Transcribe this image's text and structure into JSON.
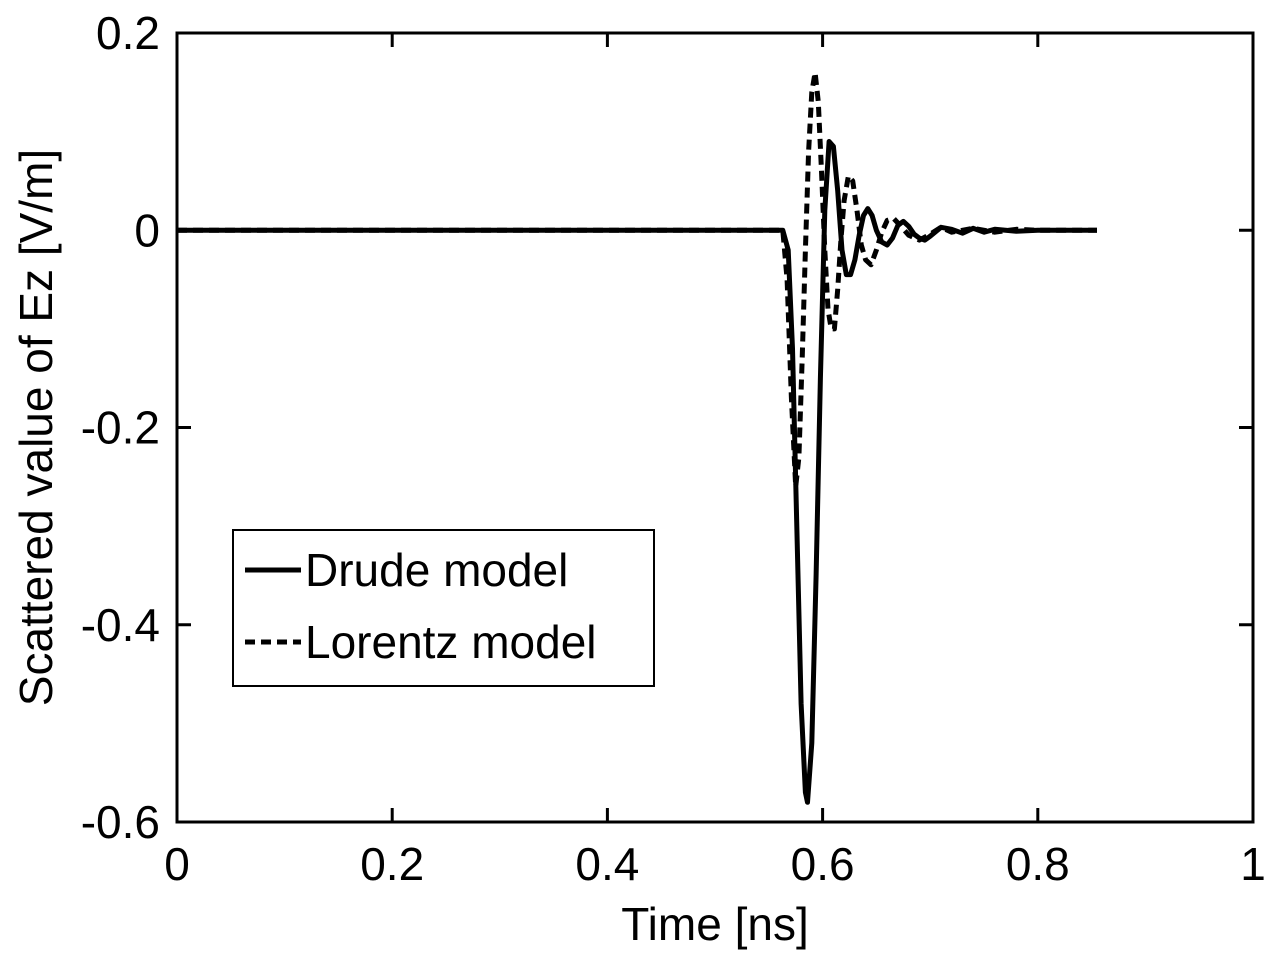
{
  "chart_data": {
    "type": "line",
    "title": "",
    "xlabel": "Time [ns]",
    "ylabel": "Scattered value of Ez [V/m]",
    "xlim": [
      0,
      1
    ],
    "ylim": [
      -0.6,
      0.2
    ],
    "xticks": [
      0,
      0.2,
      0.4,
      0.6,
      0.8,
      1
    ],
    "xtick_labels": [
      "0",
      "0.2",
      "0.4",
      "0.6",
      "0.8",
      "1"
    ],
    "yticks": [
      -0.6,
      -0.4,
      -0.2,
      0,
      0.2
    ],
    "ytick_labels": [
      "-0.6",
      "-0.4",
      "-0.2",
      "0",
      "0.2"
    ],
    "grid": false,
    "legend_position": "lower-left",
    "series": [
      {
        "name": "Drude model",
        "style": "solid",
        "color": "#000000",
        "x": [
          0,
          0.563,
          0.568,
          0.572,
          0.576,
          0.58,
          0.584,
          0.586,
          0.59,
          0.594,
          0.598,
          0.602,
          0.606,
          0.61,
          0.614,
          0.618,
          0.622,
          0.626,
          0.63,
          0.634,
          0.638,
          0.642,
          0.646,
          0.65,
          0.655,
          0.66,
          0.665,
          0.67,
          0.675,
          0.68,
          0.685,
          0.69,
          0.695,
          0.7,
          0.71,
          0.72,
          0.73,
          0.74,
          0.75,
          0.76,
          0.78,
          0.8,
          0.82,
          0.855
        ],
        "y": [
          0,
          0,
          -0.02,
          -0.12,
          -0.3,
          -0.48,
          -0.57,
          -0.58,
          -0.52,
          -0.35,
          -0.15,
          0.02,
          0.09,
          0.085,
          0.04,
          -0.02,
          -0.045,
          -0.045,
          -0.03,
          -0.005,
          0.015,
          0.022,
          0.015,
          0.0,
          -0.012,
          -0.015,
          -0.008,
          0.005,
          0.009,
          0.004,
          -0.004,
          -0.008,
          -0.01,
          -0.006,
          0.003,
          0.001,
          -0.003,
          0.002,
          -0.002,
          0.001,
          -0.001,
          0.0,
          0.0,
          0.0
        ]
      },
      {
        "name": "Lorentz model",
        "style": "dashed",
        "color": "#000000",
        "x": [
          0,
          0.563,
          0.567,
          0.571,
          0.575,
          0.578,
          0.581,
          0.584,
          0.587,
          0.59,
          0.593,
          0.596,
          0.599,
          0.602,
          0.605,
          0.608,
          0.611,
          0.614,
          0.617,
          0.62,
          0.624,
          0.628,
          0.632,
          0.636,
          0.64,
          0.645,
          0.65,
          0.655,
          0.66,
          0.666,
          0.672,
          0.68,
          0.69,
          0.7,
          0.71,
          0.72,
          0.74,
          0.76,
          0.78,
          0.8,
          0.82,
          0.855
        ],
        "y": [
          0,
          0,
          -0.05,
          -0.17,
          -0.26,
          -0.23,
          -0.13,
          -0.02,
          0.08,
          0.14,
          0.16,
          0.13,
          0.06,
          -0.02,
          -0.08,
          -0.1,
          -0.1,
          -0.06,
          -0.01,
          0.03,
          0.055,
          0.05,
          0.02,
          -0.015,
          -0.03,
          -0.035,
          -0.02,
          -0.002,
          0.01,
          0.012,
          0.005,
          -0.005,
          -0.01,
          -0.004,
          0.003,
          -0.002,
          0.002,
          -0.002,
          0.001,
          0.0,
          0.0,
          0.0
        ]
      }
    ]
  }
}
